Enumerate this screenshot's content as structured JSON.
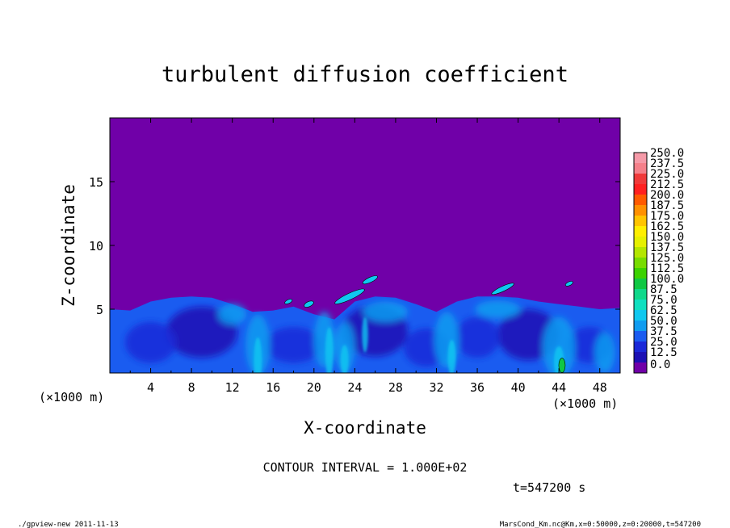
{
  "chart_data": {
    "type": "heatmap",
    "title": "turbulent diffusion coefficient",
    "xlabel": "X-coordinate",
    "ylabel": "Z-coordinate",
    "x_unit_left": "(×1000 m)",
    "x_unit_right": "(×1000 m)",
    "xlim": [
      0,
      50
    ],
    "ylim": [
      0,
      20
    ],
    "x_ticks": [
      "4",
      "8",
      "12",
      "16",
      "20",
      "24",
      "28",
      "32",
      "36",
      "40",
      "44",
      "48"
    ],
    "y_ticks": [
      "5",
      "10",
      "15"
    ],
    "colorbar": {
      "labels": [
        "250.0",
        "237.5",
        "225.0",
        "212.5",
        "200.0",
        "187.5",
        "175.0",
        "162.5",
        "150.0",
        "137.5",
        "125.0",
        "112.5",
        "100.0",
        "87.5",
        "75.0",
        "62.5",
        "50.0",
        "37.5",
        "25.0",
        "12.5",
        "0.0"
      ],
      "colors": [
        "#f59aa8",
        "#f5808a",
        "#f03a3a",
        "#ff2020",
        "#ff5a00",
        "#ff9000",
        "#ffc400",
        "#ffee00",
        "#e6f000",
        "#b4e600",
        "#78dc00",
        "#3cd200",
        "#10c844",
        "#10d88a",
        "#10e0c0",
        "#10c8f0",
        "#109cf0",
        "#1a5cf0",
        "#1a28d8",
        "#1c10b4",
        "#7000a8"
      ]
    },
    "background_color": "#7000a8",
    "contour_interval": "CONTOUR INTERVAL = 1.000E+02",
    "time": "t=547200 s"
  },
  "footer": {
    "left": "./gpview-new  2011-11-13",
    "right": "MarsCond_Km.nc@Km,x=0:50000,z=0:20000,t=547200"
  }
}
